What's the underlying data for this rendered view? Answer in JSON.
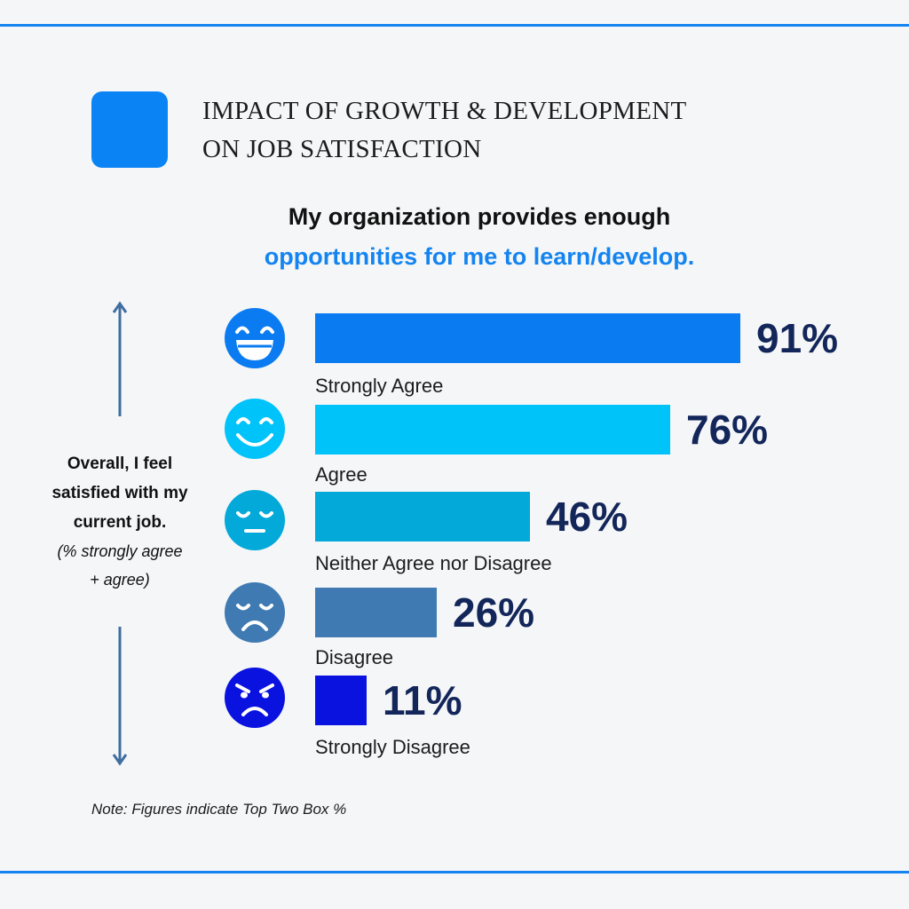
{
  "header": {
    "title_line1": "IMPACT OF GROWTH & DEVELOPMENT",
    "title_line2": "ON JOB SATISFACTION",
    "accent_color": "#0a84f5"
  },
  "question": {
    "line1": "My organization provides enough",
    "line2": "opportunities for me to learn/develop."
  },
  "side_panel": {
    "line1": "Overall, I feel",
    "line2": "satisfied with my",
    "line3": "current job.",
    "line4": "(% strongly agree",
    "line5": "+ agree)"
  },
  "note": "Note: Figures indicate Top Two Box %",
  "chart_data": {
    "type": "bar",
    "orientation": "horizontal",
    "title": "My organization provides enough opportunities for me to learn/develop.",
    "categories": [
      "Strongly Agree",
      "Agree",
      "Neither Agree nor Disagree",
      "Disagree",
      "Strongly Disagree"
    ],
    "values": [
      91,
      76,
      46,
      26,
      11
    ],
    "value_labels": [
      "91%",
      "76%",
      "46%",
      "26%",
      "11%"
    ],
    "icons": [
      "laughing-face-icon",
      "smiling-face-icon",
      "neutral-face-icon",
      "sad-face-icon",
      "angry-face-icon"
    ],
    "colors": [
      "#0a7bf0",
      "#00c3fa",
      "#03a9d9",
      "#3f7ab2",
      "#0a12e0"
    ],
    "value_color": "#13265a",
    "xlim": [
      0,
      100
    ],
    "grid": false
  }
}
